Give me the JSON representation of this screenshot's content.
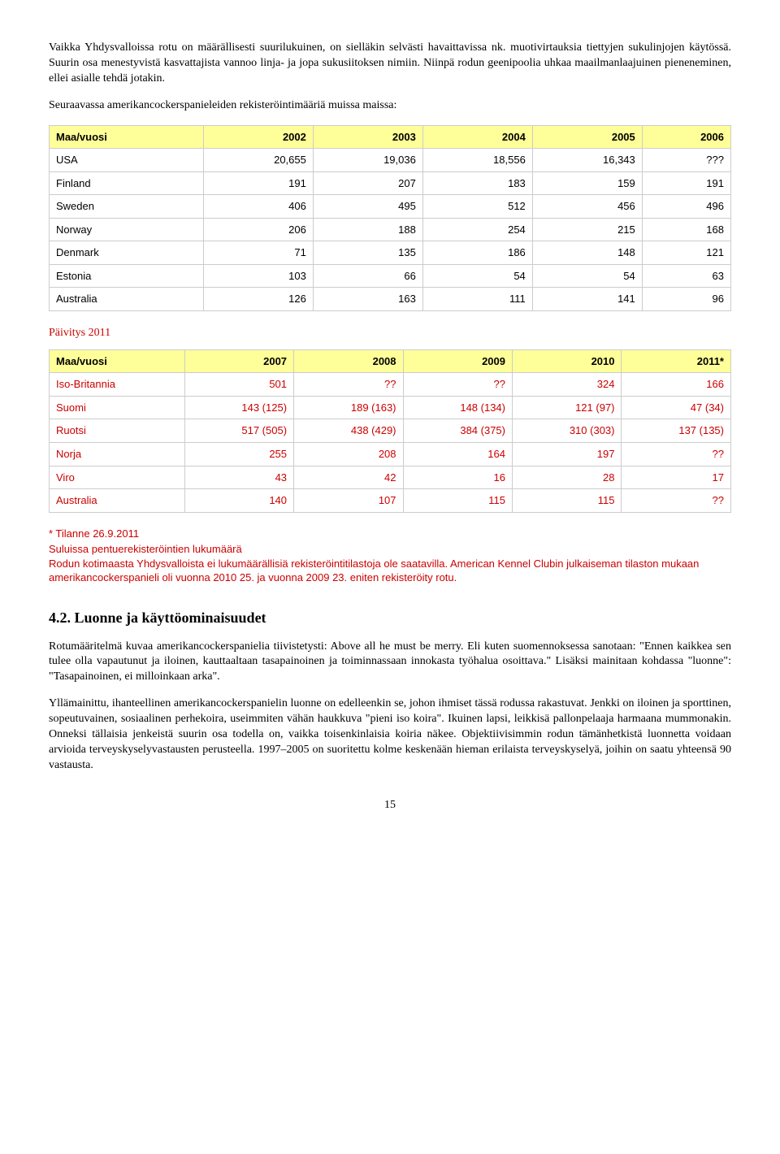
{
  "para1": "Vaikka Yhdysvalloissa rotu on määrällisesti suurilukuinen, on sielläkin selvästi havaittavissa nk. muotivirtauksia tiettyjen sukulinjojen käytössä. Suurin osa menestyvistä kasvattajista vannoo linja- ja jopa sukusiitoksen nimiin. Niinpä rodun geenipoolia uhkaa maailmanlaajuinen pieneneminen, ellei asialle tehdä jotakin.",
  "para2": "Seuraavassa amerikancockerspanieleiden rekisteröintimääriä muissa maissa:",
  "table1": {
    "header": [
      "Maa/vuosi",
      "2002",
      "2003",
      "2004",
      "2005",
      "2006"
    ],
    "rows": [
      [
        "USA",
        "20,655",
        "19,036",
        "18,556",
        "16,343",
        "???"
      ],
      [
        "Finland",
        "191",
        "207",
        "183",
        "159",
        "191"
      ],
      [
        "Sweden",
        "406",
        "495",
        "512",
        "456",
        "496"
      ],
      [
        "Norway",
        "206",
        "188",
        "254",
        "215",
        "168"
      ],
      [
        "Denmark",
        "71",
        "135",
        "186",
        "148",
        "121"
      ],
      [
        "Estonia",
        "103",
        "66",
        "54",
        "54",
        "63"
      ],
      [
        "Australia",
        "126",
        "163",
        "111",
        "141",
        "96"
      ]
    ]
  },
  "update_label": "Päivitys 2011",
  "table2": {
    "header": [
      "Maa/vuosi",
      "2007",
      "2008",
      "2009",
      "2010",
      "2011*"
    ],
    "rows": [
      [
        "Iso-Britannia",
        "501",
        "??",
        "??",
        "324",
        "166"
      ],
      [
        "Suomi",
        "143 (125)",
        "189 (163)",
        "148 (134)",
        "121 (97)",
        "47 (34)"
      ],
      [
        "Ruotsi",
        "517 (505)",
        "438 (429)",
        "384 (375)",
        "310 (303)",
        "137 (135)"
      ],
      [
        "Norja",
        "255",
        "208",
        "164",
        "197",
        "??"
      ],
      [
        "Viro",
        "43",
        "42",
        "16",
        "28",
        "17"
      ],
      [
        "Australia",
        "140",
        "107",
        "115",
        "115",
        "??"
      ]
    ]
  },
  "footnote1": "* Tilanne 26.9.2011",
  "footnote2": "Suluissa pentuerekisteröintien lukumäärä",
  "footnote3": "Rodun kotimaasta Yhdysvalloista ei lukumäärällisiä rekisteröintitilastoja ole saatavilla. American Kennel Clubin julkaiseman tilaston mukaan amerikancockerspanieli oli vuonna 2010 25. ja vuonna 2009 23. eniten rekisteröity rotu.",
  "h2": "4.2. Luonne ja käyttöominaisuudet",
  "para3": "Rotumääritelmä kuvaa amerikancockerspanielia tiivistetysti: Above all he must be merry. Eli kuten suomennoksessa sanotaan: \"Ennen kaikkea sen tulee olla vapautunut ja iloinen, kauttaaltaan tasapainoinen ja toiminnassaan innokasta työhalua osoittava.\" Lisäksi mainitaan kohdassa \"luonne\": \"Tasapainoinen, ei milloinkaan arka\".",
  "para4": "Yllämainittu, ihanteellinen amerikancockerspanielin luonne on edelleenkin se, johon ihmiset tässä rodussa rakastuvat. Jenkki on iloinen ja sporttinen, sopeutuvainen, sosiaalinen perhekoira, useimmiten vähän haukkuva \"pieni iso koira\". Ikuinen lapsi, leikkisä pallonpelaaja harmaana mummonakin. Onneksi tällaisia jenkeistä suurin osa todella on, vaikka toisenkinlaisia koiria näkee. Objektiivisimmin rodun tämänhetkistä luonnetta voidaan arvioida terveyskyselyvastausten perusteella. 1997–2005 on suoritettu kolme keskenään hieman erilaista terveyskyselyä, joihin on saatu yhteensä 90 vastausta.",
  "pagenum": "15"
}
